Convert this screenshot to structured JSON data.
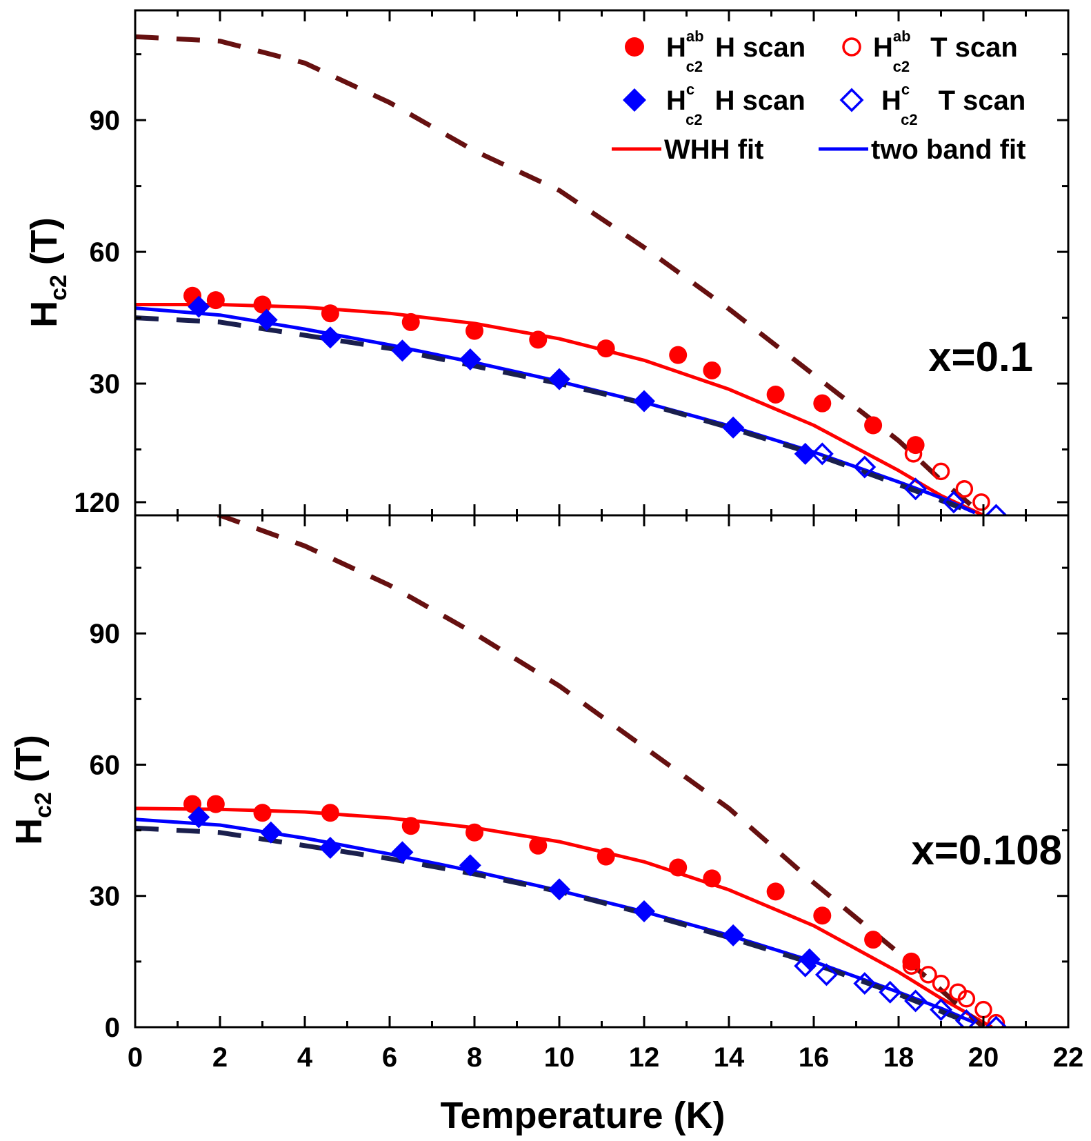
{
  "chart_data": [
    {
      "type": "scatter",
      "panel_label": "x=0.1",
      "xlabel": "Temperature (K)",
      "ylabel": "H_c2 (T)",
      "xlim": [
        0,
        22
      ],
      "ylim": [
        0,
        120
      ],
      "x_ticks": [
        "0",
        "2",
        "4",
        "6",
        "8",
        "10",
        "12",
        "14",
        "16",
        "18",
        "20",
        "22"
      ],
      "y_ticks": [
        "30",
        "60",
        "90",
        "120"
      ],
      "grid": false,
      "legend_position": "top-right",
      "series": [
        {
          "name": "H_c2^ab H scan",
          "marker": "filled-circle",
          "color": "#ff0000",
          "x": [
            1.35,
            1.9,
            3.0,
            4.6,
            6.5,
            8.0,
            9.5,
            11.1,
            12.8,
            13.6,
            15.1,
            16.2,
            17.4,
            18.4
          ],
          "y": [
            50,
            49,
            48,
            46,
            44,
            42,
            40,
            38,
            36.5,
            33,
            27.5,
            25.5,
            20.5,
            16
          ]
        },
        {
          "name": "H_c2^ab T scan",
          "marker": "open-circle",
          "color": "#ff0000",
          "x": [
            18.35,
            19.0,
            19.55,
            19.95
          ],
          "y": [
            14,
            10,
            6,
            3
          ]
        },
        {
          "name": "H_c2^c H scan",
          "marker": "filled-diamond",
          "color": "#0000ff",
          "x": [
            1.5,
            3.1,
            4.6,
            6.3,
            7.9,
            10.0,
            12.0,
            14.1,
            15.8
          ],
          "y": [
            47.5,
            44.5,
            40.5,
            37.5,
            35.5,
            31,
            26,
            20,
            14
          ]
        },
        {
          "name": "H_c2^c T scan",
          "marker": "open-diamond",
          "color": "#0000ff",
          "x": [
            16.2,
            17.2,
            18.4,
            19.3,
            20.3
          ],
          "y": [
            14,
            11,
            6,
            3,
            0
          ]
        },
        {
          "name": "WHH fit",
          "style": "solid",
          "color": "#ff0000",
          "x": [
            0,
            2,
            4,
            6,
            8,
            10,
            12,
            14,
            16,
            18,
            19,
            20
          ],
          "y": [
            48,
            48,
            47.4,
            46,
            43.7,
            40.2,
            35.3,
            28.7,
            20.5,
            10.2,
            4.5,
            0
          ]
        },
        {
          "name": "two band fit",
          "style": "solid",
          "color": "#0000ff",
          "x": [
            0,
            2,
            4,
            6,
            8,
            10,
            12,
            14,
            16,
            18,
            19,
            19.8
          ],
          "y": [
            47.2,
            45.6,
            42.4,
            38.8,
            34.8,
            30.5,
            25.7,
            20.4,
            14.4,
            7.6,
            4.0,
            0.6
          ]
        },
        {
          "style": "dashed",
          "color": "#661010",
          "x": [
            0,
            2,
            4,
            6,
            8,
            10,
            12,
            14,
            16,
            18,
            19,
            20
          ],
          "y": [
            109,
            108,
            103,
            94,
            83,
            74,
            61,
            47,
            32,
            17,
            8,
            0
          ]
        },
        {
          "style": "dashed",
          "color": "#1a1f4d",
          "x": [
            0,
            2,
            4,
            6,
            8,
            10,
            12,
            14,
            16,
            18,
            19.8
          ],
          "y": [
            45,
            44,
            41,
            38,
            34,
            30,
            25.5,
            20,
            14,
            7,
            0.5
          ]
        }
      ]
    },
    {
      "type": "scatter",
      "panel_label": "x=0.108",
      "xlabel": "Temperature (K)",
      "ylabel": "H_c2 (T)",
      "xlim": [
        0,
        22
      ],
      "ylim": [
        0,
        120
      ],
      "x_ticks": [
        "0",
        "2",
        "4",
        "6",
        "8",
        "10",
        "12",
        "14",
        "16",
        "18",
        "20",
        "22"
      ],
      "y_ticks": [
        "0",
        "30",
        "60",
        "90",
        "120"
      ],
      "grid": false,
      "series": [
        {
          "name": "H_c2^ab H scan",
          "marker": "filled-circle",
          "color": "#ff0000",
          "x": [
            1.35,
            1.9,
            3.0,
            4.6,
            6.5,
            8.0,
            9.5,
            11.1,
            12.8,
            13.6,
            15.1,
            16.2,
            17.4,
            18.3
          ],
          "y": [
            51,
            51,
            49,
            49,
            46,
            44.5,
            41.5,
            39,
            36.5,
            34,
            31,
            25.5,
            20,
            15
          ]
        },
        {
          "name": "H_c2^ab T scan",
          "marker": "open-circle",
          "color": "#ff0000",
          "x": [
            18.3,
            18.7,
            19.0,
            19.4,
            19.6,
            20.0,
            20.3
          ],
          "y": [
            14,
            12,
            10,
            8,
            6.5,
            4,
            1
          ]
        },
        {
          "name": "H_c2^c H scan",
          "marker": "filled-diamond",
          "color": "#0000ff",
          "x": [
            1.5,
            3.2,
            4.6,
            6.3,
            7.9,
            10.0,
            12.0,
            14.1,
            15.9
          ],
          "y": [
            48,
            44.5,
            41,
            40,
            37,
            31.5,
            26.5,
            21,
            15.5
          ]
        },
        {
          "name": "H_c2^c T scan",
          "marker": "open-diamond",
          "color": "#0000ff",
          "x": [
            15.8,
            16.3,
            17.2,
            17.8,
            18.4,
            19.0,
            19.6,
            20.3
          ],
          "y": [
            14,
            12,
            10,
            8,
            6,
            4,
            1.5,
            0
          ]
        },
        {
          "name": "WHH fit",
          "style": "solid",
          "color": "#ff0000",
          "x": [
            0,
            2,
            4,
            6,
            8,
            10,
            12,
            14,
            16,
            18,
            19,
            20.2
          ],
          "y": [
            50,
            49.8,
            49.2,
            47.8,
            45.6,
            42.4,
            37.8,
            31.4,
            23.2,
            12.6,
            6.6,
            0
          ]
        },
        {
          "name": "two band fit",
          "style": "solid",
          "color": "#0000ff",
          "x": [
            0,
            2,
            4,
            6,
            8,
            10,
            12,
            14,
            16,
            18,
            19,
            19.8
          ],
          "y": [
            47.5,
            46.2,
            43.2,
            39.6,
            35.6,
            31.2,
            26.4,
            21,
            15,
            8,
            4.3,
            1
          ]
        },
        {
          "style": "dashed",
          "color": "#661010",
          "x": [
            0,
            2,
            4,
            6,
            8,
            10,
            12,
            14,
            16,
            18,
            19,
            20
          ],
          "y": [
            119,
            117,
            110,
            101,
            90,
            78,
            64,
            50,
            33,
            17,
            8.5,
            0
          ]
        },
        {
          "style": "dashed",
          "color": "#1a1f4d",
          "x": [
            0,
            2,
            4,
            6,
            8,
            10,
            12,
            14,
            16,
            18,
            19.8
          ],
          "y": [
            45.5,
            44.5,
            41.5,
            38.5,
            35,
            31,
            26,
            20.5,
            14.5,
            7.5,
            0.5
          ]
        }
      ]
    }
  ],
  "legend": {
    "items": [
      {
        "base": "H",
        "sup": "ab",
        "sub": "c2",
        "text": "H scan",
        "marker": "filled-circle",
        "color": "#ff0000"
      },
      {
        "base": "H",
        "sup": "ab",
        "sub": "c2",
        "text": "T scan",
        "marker": "open-circle",
        "color": "#ff0000"
      },
      {
        "base": "H",
        "sup": "c",
        "sub": "c2",
        "text": "H scan",
        "marker": "filled-diamond",
        "color": "#0000ff"
      },
      {
        "base": "H",
        "sup": "c",
        "sub": "c2",
        "text": "T scan",
        "marker": "open-diamond",
        "color": "#0000ff"
      },
      {
        "text": "WHH fit",
        "marker": "line",
        "color": "#ff0000"
      },
      {
        "text": "two band fit",
        "marker": "line",
        "color": "#0000ff"
      }
    ]
  },
  "axis_title": {
    "x": "Temperature (K)",
    "y_base": "H",
    "y_sub": "c2",
    "y_unit": "(T)"
  }
}
